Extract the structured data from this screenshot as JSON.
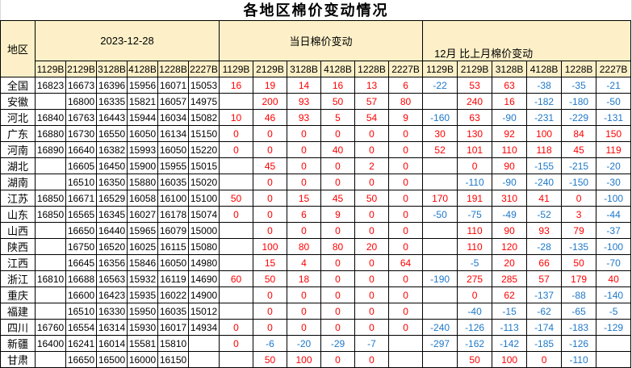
{
  "title": "各地区棉价变动情况",
  "colors": {
    "header_bg": "#FDF0C8",
    "positive_change": "#FF0000",
    "negative_change": "#1E78C8",
    "price_text": "#000000"
  },
  "table": {
    "region_header": "地区",
    "groups": [
      {
        "label": "2023-12-28",
        "subcols": [
          "1129B",
          "2129B",
          "3128B",
          "4128B",
          "1228B",
          "2227B"
        ]
      },
      {
        "label": "当日棉价变动",
        "subcols": [
          "1129B",
          "2129B",
          "3128B",
          "4128B",
          "1228B",
          "2227B"
        ]
      },
      {
        "label": "12月 比上月棉价变动",
        "subcols": [
          "1129B",
          "2129B",
          "3128B",
          "4128B",
          "1228B",
          "2227B"
        ]
      }
    ],
    "rows": [
      {
        "region": "全国",
        "prices": [
          "16823",
          "16673",
          "16396",
          "15956",
          "16071",
          "15053"
        ],
        "daily": [
          "16",
          "19",
          "14",
          "16",
          "13",
          "6"
        ],
        "monthly": [
          "-22",
          "53",
          "63",
          "-38",
          "-35",
          "-21"
        ]
      },
      {
        "region": "安徽",
        "prices": [
          "",
          "16800",
          "16335",
          "15821",
          "16057",
          "14975"
        ],
        "daily": [
          "",
          "200",
          "93",
          "50",
          "57",
          "80"
        ],
        "monthly": [
          "",
          "240",
          "16",
          "-182",
          "-180",
          "-50"
        ]
      },
      {
        "region": "河北",
        "prices": [
          "16840",
          "16763",
          "16443",
          "15944",
          "16034",
          "15082"
        ],
        "daily": [
          "10",
          "46",
          "93",
          "5",
          "54",
          "9"
        ],
        "monthly": [
          "-160",
          "63",
          "-90",
          "-231",
          "-229",
          "-131"
        ]
      },
      {
        "region": "广东",
        "prices": [
          "16880",
          "16730",
          "16550",
          "16050",
          "16134",
          "15150"
        ],
        "daily": [
          "0",
          "0",
          "0",
          "0",
          "0",
          "0"
        ],
        "monthly": [
          "30",
          "130",
          "92",
          "100",
          "84",
          "150"
        ]
      },
      {
        "region": "河南",
        "prices": [
          "16890",
          "16640",
          "16382",
          "15993",
          "16050",
          "15220"
        ],
        "daily": [
          "0",
          "0",
          "0",
          "40",
          "0",
          "0"
        ],
        "monthly": [
          "52",
          "101",
          "110",
          "118",
          "45",
          "119"
        ]
      },
      {
        "region": "湖北",
        "prices": [
          "",
          "16605",
          "16450",
          "15900",
          "15955",
          "15015"
        ],
        "daily": [
          "",
          "45",
          "0",
          "0",
          "2",
          "0"
        ],
        "monthly": [
          "",
          "0",
          "90",
          "-155",
          "-215",
          "-20"
        ]
      },
      {
        "region": "湖南",
        "prices": [
          "",
          "16510",
          "16350",
          "15880",
          "16035",
          "15020"
        ],
        "daily": [
          "",
          "0",
          "0",
          "0",
          "0",
          "0"
        ],
        "monthly": [
          "",
          "-110",
          "-90",
          "-240",
          "-150",
          "-30"
        ]
      },
      {
        "region": "江苏",
        "prices": [
          "16850",
          "16671",
          "16529",
          "16058",
          "16100",
          "15100"
        ],
        "daily": [
          "50",
          "0",
          "15",
          "45",
          "50",
          "0"
        ],
        "monthly": [
          "170",
          "191",
          "310",
          "41",
          "0",
          "-100"
        ]
      },
      {
        "region": "山东",
        "prices": [
          "16850",
          "16565",
          "16345",
          "16027",
          "16178",
          "15074"
        ],
        "daily": [
          "0",
          "0",
          "6",
          "9",
          "0",
          "0"
        ],
        "monthly": [
          "-50",
          "-75",
          "-49",
          "-52",
          "3",
          "-44"
        ]
      },
      {
        "region": "山西",
        "prices": [
          "",
          "16650",
          "16440",
          "15965",
          "16079",
          "15000"
        ],
        "daily": [
          "",
          "0",
          "0",
          "0",
          "0",
          "0"
        ],
        "monthly": [
          "",
          "110",
          "90",
          "93",
          "79",
          "-37"
        ]
      },
      {
        "region": "陕西",
        "prices": [
          "",
          "16750",
          "16520",
          "16025",
          "16115",
          "15080"
        ],
        "daily": [
          "",
          "100",
          "80",
          "80",
          "20",
          "0"
        ],
        "monthly": [
          "",
          "110",
          "120",
          "-28",
          "-135",
          "-100"
        ]
      },
      {
        "region": "江西",
        "prices": [
          "",
          "16645",
          "16356",
          "15846",
          "16050",
          "14980"
        ],
        "daily": [
          "",
          "15",
          "4",
          "0",
          "0",
          "64"
        ],
        "monthly": [
          "",
          "-5",
          "20",
          "66",
          "50",
          "-70"
        ]
      },
      {
        "region": "浙江",
        "prices": [
          "16810",
          "16688",
          "16563",
          "15932",
          "16119",
          "14690"
        ],
        "daily": [
          "60",
          "50",
          "18",
          "0",
          "0",
          "0"
        ],
        "monthly": [
          "-190",
          "275",
          "285",
          "57",
          "179",
          "40"
        ]
      },
      {
        "region": "重庆",
        "prices": [
          "",
          "16600",
          "16423",
          "15935",
          "16022",
          "14900"
        ],
        "daily": [
          "",
          "0",
          "0",
          "0",
          "0",
          "0"
        ],
        "monthly": [
          "",
          "0",
          "62",
          "-137",
          "-88",
          "-140"
        ]
      },
      {
        "region": "福建",
        "prices": [
          "",
          "16510",
          "16330",
          "15950",
          "16035",
          "15012"
        ],
        "daily": [
          "",
          "0",
          "0",
          "0",
          "0",
          "0"
        ],
        "monthly": [
          "",
          "-40",
          "-15",
          "-62",
          "-65",
          "-5"
        ]
      },
      {
        "region": "四川",
        "prices": [
          "16760",
          "16554",
          "16314",
          "15930",
          "16017",
          "14934"
        ],
        "daily": [
          "0",
          "0",
          "0",
          "0",
          "0",
          "0"
        ],
        "monthly": [
          "-240",
          "-126",
          "-113",
          "-174",
          "-183",
          "-129"
        ]
      },
      {
        "region": "新疆",
        "prices": [
          "16400",
          "16241",
          "16014",
          "15581",
          "15810",
          ""
        ],
        "daily": [
          "0",
          "-6",
          "-20",
          "-29",
          "-7",
          ""
        ],
        "monthly": [
          "-297",
          "-162",
          "-142",
          "-185",
          "-126",
          ""
        ]
      },
      {
        "region": "甘肃",
        "prices": [
          "",
          "16650",
          "16500",
          "16000",
          "16150",
          ""
        ],
        "daily": [
          "",
          "50",
          "100",
          "0",
          "0",
          ""
        ],
        "monthly": [
          "",
          "50",
          "100",
          "0",
          "-110",
          ""
        ]
      }
    ]
  }
}
